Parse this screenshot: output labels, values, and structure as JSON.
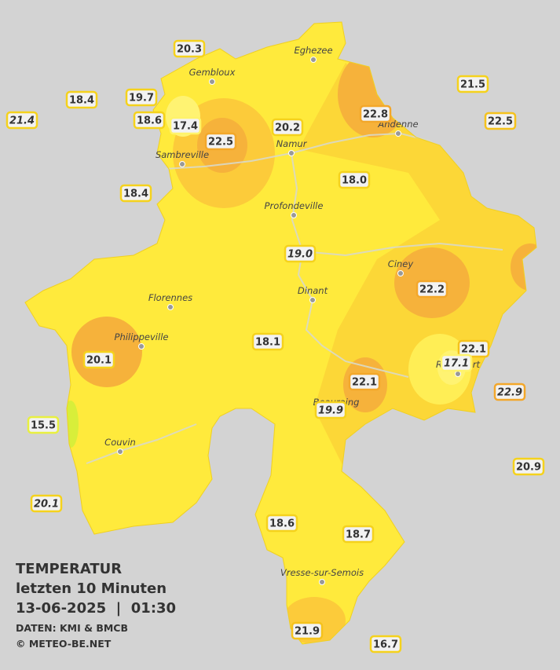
{
  "title": "TEMPERATUR",
  "subtitle": "letzten 10 Minuten",
  "datetime": "13-06-2025  |  01:30",
  "source": "DATEN: KMI & BMCB",
  "copyright": "© METEO-BE.NET",
  "stations": [
    {
      "value": "20.3",
      "border": "#f5d21c",
      "italic": false
    },
    {
      "value": "18.4",
      "border": "#f5d21c",
      "italic": false
    },
    {
      "value": "19.7",
      "border": "#f5d21c",
      "italic": false
    },
    {
      "value": "21.4",
      "border": "#f5d21c",
      "italic": true
    },
    {
      "value": "18.6",
      "border": "#f5d21c",
      "italic": false
    },
    {
      "value": "17.4",
      "border": "#fff36a",
      "italic": false
    },
    {
      "value": "22.5",
      "border": "#f3a72a",
      "italic": false
    },
    {
      "value": "20.2",
      "border": "#f5d21c",
      "italic": false
    },
    {
      "value": "22.8",
      "border": "#f3a72a",
      "italic": false
    },
    {
      "value": "21.5",
      "border": "#f5d21c",
      "italic": false
    },
    {
      "value": "22.5",
      "border": "#f5c21c",
      "italic": false
    },
    {
      "value": "18.4",
      "border": "#f5d21c",
      "italic": false
    },
    {
      "value": "18.0",
      "border": "#f5d21c",
      "italic": false
    },
    {
      "value": "19.0",
      "border": "#f5d21c",
      "italic": true
    },
    {
      "value": "22.2",
      "border": "#f3a72a",
      "italic": false
    },
    {
      "value": "18.1",
      "border": "#f5d21c",
      "italic": false
    },
    {
      "value": "20.1",
      "border": "#f5d21c",
      "italic": false
    },
    {
      "value": "22.1",
      "border": "#f5c21c",
      "italic": false
    },
    {
      "value": "17.1",
      "border": "#fff36a",
      "italic": true
    },
    {
      "value": "22.1",
      "border": "#f3a72a",
      "italic": false
    },
    {
      "value": "22.9",
      "border": "#f3a72a",
      "italic": true
    },
    {
      "value": "19.9",
      "border": "#f5d21c",
      "italic": true
    },
    {
      "value": "15.5",
      "border": "#e8f040",
      "italic": false
    },
    {
      "value": "20.9",
      "border": "#f5d21c",
      "italic": false
    },
    {
      "value": "20.1",
      "border": "#f5d21c",
      "italic": true
    },
    {
      "value": "18.6",
      "border": "#f5d21c",
      "italic": false
    },
    {
      "value": "18.7",
      "border": "#f5d21c",
      "italic": false
    },
    {
      "value": "21.9",
      "border": "#f5c21c",
      "italic": false
    },
    {
      "value": "16.7",
      "border": "#f5d21c",
      "italic": false
    }
  ],
  "cities": [
    "Eghezee",
    "Gembloux",
    "Andenne",
    "Namur",
    "Sambreville",
    "Profondeville",
    "Ciney",
    "Dinant",
    "Florennes",
    "Philippeville",
    "Rochefort",
    "Beauraing",
    "Couvin",
    "Vresse-sur-Semois"
  ]
}
